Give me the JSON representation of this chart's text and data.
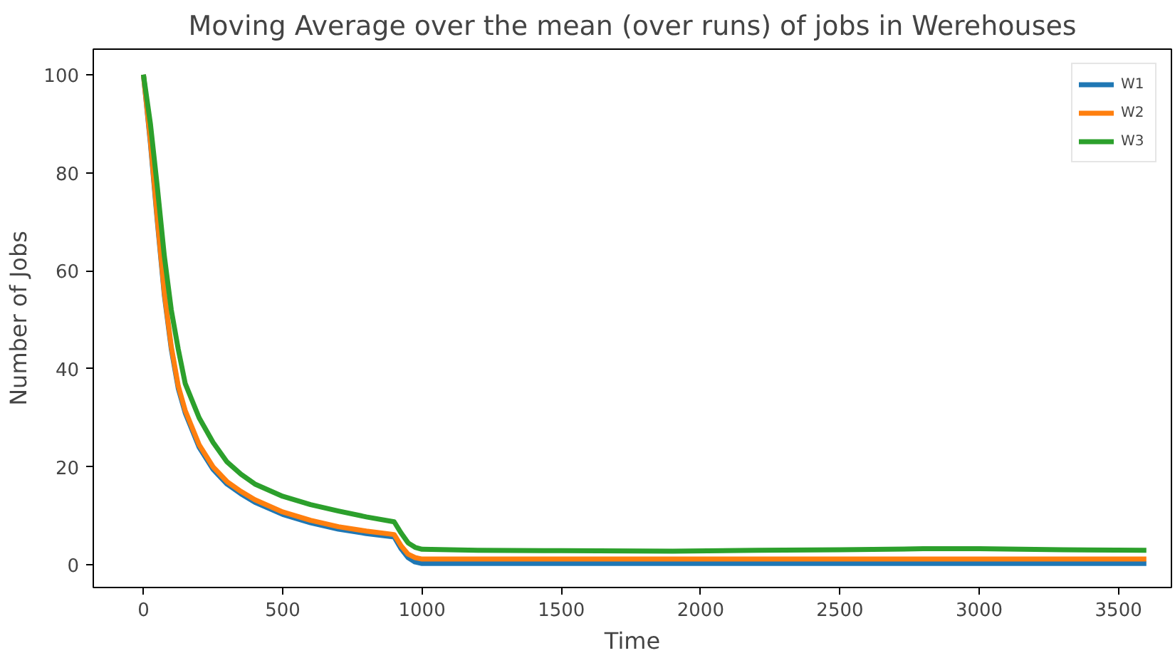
{
  "chart_data": {
    "type": "line",
    "title": "Moving Average over the mean (over runs) of jobs in Werehouses",
    "xlabel": "Time",
    "ylabel": "Number of Jobs",
    "x": [
      0,
      25,
      50,
      75,
      100,
      125,
      150,
      200,
      250,
      300,
      350,
      400,
      500,
      600,
      700,
      800,
      900,
      925,
      950,
      975,
      1000,
      1200,
      1500,
      1900,
      2200,
      2500,
      2800,
      3000,
      3300,
      3600
    ],
    "series": [
      {
        "name": "W1",
        "color": "#1f77b4",
        "values": [
          100,
          86,
          70,
          55,
          44,
          36,
          31,
          24,
          19.5,
          16.5,
          14.5,
          12.8,
          10.3,
          8.6,
          7.3,
          6.4,
          5.7,
          3.3,
          1.5,
          0.6,
          0.3,
          0.3,
          0.3,
          0.3,
          0.3,
          0.3,
          0.3,
          0.3,
          0.3,
          0.3
        ]
      },
      {
        "name": "W2",
        "color": "#ff7f0e",
        "values": [
          100,
          86.5,
          70.5,
          55.5,
          44.5,
          36.5,
          31.5,
          24.5,
          20,
          17,
          15,
          13.3,
          10.8,
          9.1,
          7.8,
          6.9,
          6.2,
          3.9,
          2.2,
          1.5,
          1.2,
          1.2,
          1.2,
          1.2,
          1.2,
          1.2,
          1.2,
          1.2,
          1.2,
          1.2
        ]
      },
      {
        "name": "W3",
        "color": "#2ca02c",
        "values": [
          100,
          90,
          77,
          63,
          52,
          44,
          37,
          30,
          25,
          21,
          18.5,
          16.5,
          14,
          12.3,
          11,
          9.8,
          8.8,
          6.5,
          4.5,
          3.6,
          3.2,
          3.0,
          2.9,
          2.8,
          3.0,
          3.1,
          3.3,
          3.3,
          3.1,
          3.0
        ]
      }
    ],
    "xlim": [
      -180,
      3690
    ],
    "ylim": [
      -4.6,
      105.2
    ],
    "xticks": [
      0,
      500,
      1000,
      1500,
      2000,
      2500,
      3000,
      3500
    ],
    "yticks": [
      0,
      20,
      40,
      60,
      80,
      100
    ],
    "grid": false,
    "legend": "top right",
    "line_style": "solid",
    "marker": "none"
  }
}
